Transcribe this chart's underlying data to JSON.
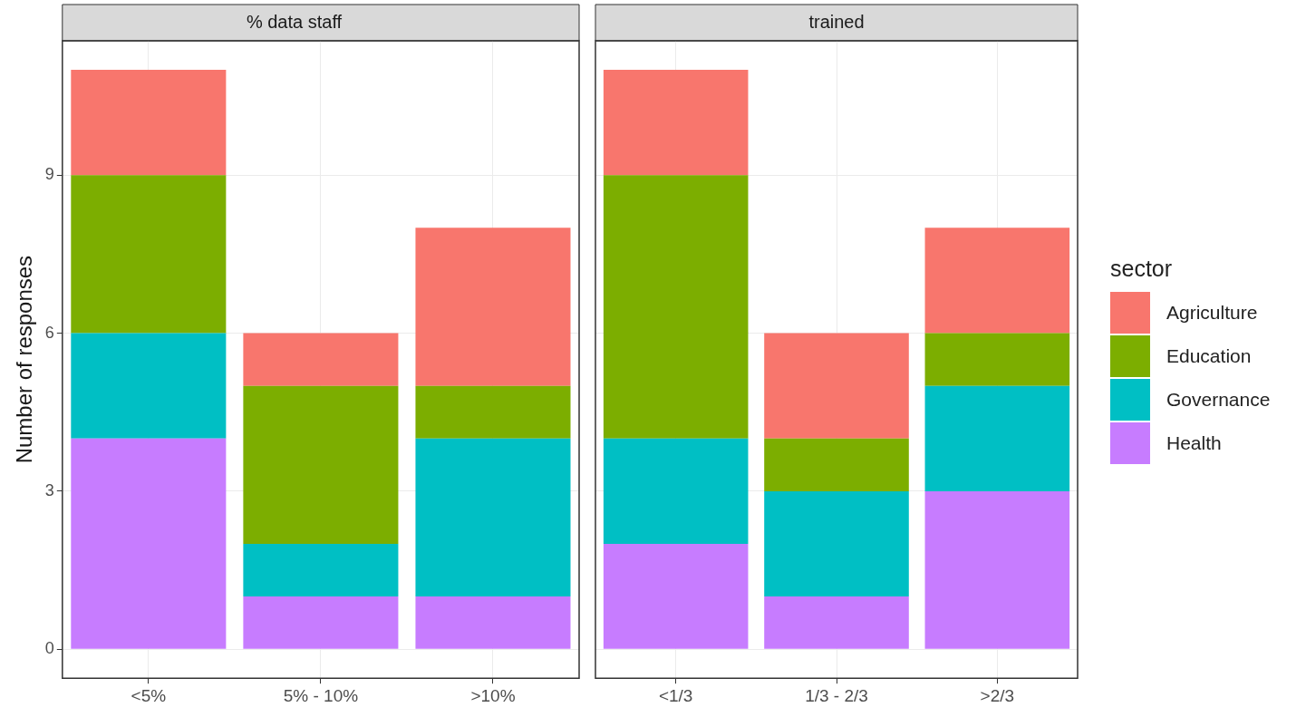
{
  "chart_data": [
    {
      "type": "bar",
      "title": "% data staff",
      "ylabel": "Number of responses",
      "categories": [
        "<5%",
        "5% - 10%",
        ">10%"
      ],
      "stacked": true,
      "series": [
        {
          "color": "#c77cff",
          "values": [
            4,
            1,
            1
          ]
        },
        {
          "color": "#00bfc4",
          "values": [
            2,
            1,
            3
          ]
        },
        {
          "color": "#7cae00",
          "values": [
            3,
            3,
            1
          ]
        },
        {
          "color": "#f8766d",
          "values": [
            2,
            1,
            3
          ]
        }
      ],
      "ylim": [
        -0.55,
        11.55
      ],
      "yticks": [
        0,
        3,
        6,
        9
      ],
      "grid": true,
      "legend": false
    },
    {
      "type": "bar",
      "title": "trained",
      "categories": [
        "<1/3",
        "1/3 - 2/3",
        ">2/3"
      ],
      "stacked": true,
      "series": [
        {
          "name": "Health",
          "color": "#c77cff",
          "values": [
            2,
            1,
            3
          ]
        },
        {
          "name": "Governance",
          "color": "#00bfc4",
          "values": [
            2,
            2,
            2
          ]
        },
        {
          "name": "Education",
          "color": "#7cae00",
          "values": [
            5,
            1,
            1
          ]
        },
        {
          "name": "Agriculture",
          "color": "#f8766d",
          "values": [
            2,
            2,
            2
          ]
        }
      ],
      "ylim": [
        -0.55,
        11.55
      ],
      "yticks": [
        0,
        3,
        6,
        9
      ],
      "grid": true,
      "tick_labels": "x",
      "legend": "right",
      "legend_title": "sector"
    }
  ]
}
